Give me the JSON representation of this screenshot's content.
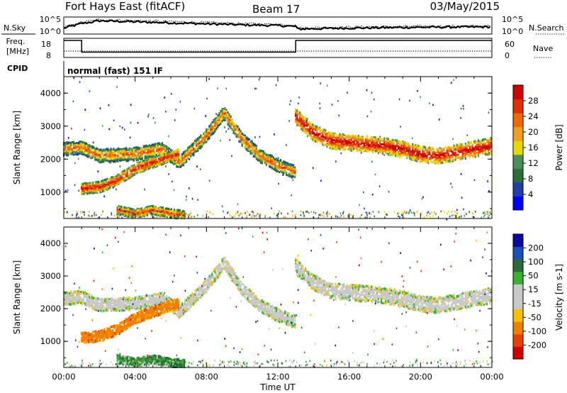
{
  "header": {
    "station": "Fort Hays East (fitACF)",
    "beam": "Beam 17",
    "date": "03/May/2015"
  },
  "summary_panels": {
    "nsky_label": "N.Sky",
    "nsearch_label": "N.Search",
    "nsky_ticks": [
      "10^5",
      "10^0"
    ],
    "nsearch_ticks": [
      "10^5",
      "10^0"
    ],
    "freq_label_top": "Freq.",
    "freq_label_unit": "[MHz]",
    "freq_ticks": [
      "18",
      "8"
    ],
    "nave_label": "Nave",
    "nave_ticks": [
      "60",
      "0"
    ],
    "cpid_label": "CPID",
    "cpid_value": "normal (fast) 151 IF"
  },
  "colors": {
    "power_scale": [
      "#0000ff",
      "#1f3fa8",
      "#2a6e3a",
      "#4a8f5a",
      "#e8d800",
      "#f0a020",
      "#f06a00",
      "#e03000",
      "#d00000"
    ],
    "velocity_scale": [
      "#0a0aa0",
      "#1a4fb8",
      "#2d6a3a",
      "#36b030",
      "#c8c8c8",
      "#c8c8c8",
      "#f5c000",
      "#f08000",
      "#e84000",
      "#d00000"
    ],
    "axis": "#000000"
  },
  "chart_data": [
    {
      "type": "line",
      "title": "N.Sky / N.Search",
      "x_unit": "Time UT (hours)",
      "y_scale": "log",
      "ylim_label": [
        "10^0",
        "10^5"
      ],
      "series": [
        {
          "name": "N.Sky",
          "style": "solid",
          "x": [
            0,
            1,
            2,
            4,
            6,
            8,
            10,
            12,
            13,
            13.1,
            16,
            20,
            24
          ],
          "y_rel": [
            0.35,
            0.62,
            0.78,
            0.72,
            0.66,
            0.6,
            0.54,
            0.5,
            0.45,
            0.3,
            0.35,
            0.4,
            0.42
          ]
        },
        {
          "name": "N.Search",
          "style": "dotted",
          "x": [
            0,
            1,
            2,
            4,
            6,
            8,
            10,
            12,
            13,
            13.1,
            16,
            20,
            24
          ],
          "y_rel": [
            0.4,
            0.7,
            0.85,
            0.8,
            0.74,
            0.68,
            0.62,
            0.58,
            0.52,
            0.36,
            0.42,
            0.46,
            0.48
          ]
        }
      ]
    },
    {
      "type": "line",
      "title": "Freq / Nave",
      "series": [
        {
          "name": "Freq [MHz]",
          "x": [
            0,
            1,
            1,
            13,
            13,
            24
          ],
          "y": [
            18,
            18,
            10.5,
            10.5,
            18,
            18
          ]
        },
        {
          "name": "Nave",
          "style": "dotted",
          "x": [
            0,
            24
          ],
          "y": [
            8,
            8
          ]
        }
      ]
    },
    {
      "type": "heatmap",
      "title": "Power",
      "xlabel": "Time UT",
      "ylabel": "Slant Range [km]",
      "x_ticks": [
        "00:00",
        "04:00",
        "08:00",
        "12:00",
        "16:00",
        "20:00",
        "00:00"
      ],
      "y_ticks": [
        "1000",
        "2000",
        "3000",
        "4000"
      ],
      "xlim_hours": [
        0,
        24
      ],
      "ylim_km": [
        200,
        4500
      ],
      "colorbar": {
        "label": "Power [dB]",
        "ticks": [
          "4",
          "8",
          "12",
          "16",
          "20",
          "24",
          "28"
        ],
        "range": [
          0,
          30
        ]
      },
      "bands": [
        {
          "name": "upper echo band",
          "t": [
            0,
            1,
            2,
            4,
            5.5,
            6.5,
            8,
            9,
            10,
            11,
            12,
            13
          ],
          "r": [
            2300,
            2350,
            2100,
            2150,
            2300,
            1900,
            2700,
            3400,
            2600,
            2100,
            1800,
            1600
          ],
          "width_km": 180,
          "power_db": 18
        },
        {
          "name": "lower band",
          "t": [
            1,
            2,
            3,
            4,
            5,
            6,
            6.5
          ],
          "r": [
            1100,
            1150,
            1350,
            1700,
            1900,
            2100,
            2150
          ],
          "width_km": 150,
          "power_db": 22
        },
        {
          "name": "low range echoes",
          "t": [
            3,
            4,
            5,
            6,
            6.8
          ],
          "r": [
            450,
            350,
            450,
            350,
            300
          ],
          "width_km": 120,
          "power_db": 20
        },
        {
          "name": "post-13 band",
          "t": [
            13,
            14,
            15,
            16,
            17,
            18,
            19,
            20,
            21,
            22,
            23,
            24
          ],
          "r": [
            3300,
            2800,
            2550,
            2500,
            2450,
            2400,
            2300,
            2150,
            2100,
            2200,
            2300,
            2400
          ],
          "width_km": 220,
          "power_db": 24
        }
      ]
    },
    {
      "type": "heatmap",
      "title": "Velocity",
      "xlabel": "Time UT",
      "ylabel": "Slant Range [km]",
      "x_ticks": [
        "00:00",
        "04:00",
        "08:00",
        "12:00",
        "16:00",
        "20:00",
        "00:00"
      ],
      "y_ticks": [
        "1000",
        "2000",
        "3000",
        "4000"
      ],
      "xlim_hours": [
        0,
        24
      ],
      "ylim_km": [
        200,
        4500
      ],
      "colorbar": {
        "label": "Velocity [m s-1]",
        "ticks": [
          "200",
          "100",
          "50",
          "15",
          "-15",
          "-50",
          "-100",
          "-200"
        ],
        "range": [
          -250,
          250
        ]
      },
      "bands": [
        {
          "name": "upper echo band",
          "t": [
            0,
            1,
            2,
            4,
            5.5,
            6.5,
            8,
            9,
            10,
            11,
            12,
            13
          ],
          "r": [
            2300,
            2350,
            2100,
            2150,
            2300,
            1900,
            2700,
            3400,
            2600,
            2100,
            1800,
            1600
          ],
          "width_km": 180,
          "vel": 0
        },
        {
          "name": "lower band",
          "t": [
            1,
            2,
            3,
            4,
            5,
            6,
            6.5
          ],
          "r": [
            1100,
            1150,
            1350,
            1700,
            1900,
            2100,
            2150
          ],
          "width_km": 150,
          "vel": -60
        },
        {
          "name": "low range echoes",
          "t": [
            3,
            4,
            5,
            6,
            6.8
          ],
          "r": [
            450,
            350,
            450,
            350,
            300
          ],
          "width_km": 120,
          "vel": 40
        },
        {
          "name": "post-13 band",
          "t": [
            13,
            14,
            15,
            16,
            17,
            18,
            19,
            20,
            21,
            22,
            23,
            24
          ],
          "r": [
            3300,
            2800,
            2550,
            2500,
            2450,
            2400,
            2300,
            2150,
            2100,
            2200,
            2300,
            2400
          ],
          "width_km": 220,
          "vel": 0
        }
      ]
    }
  ],
  "axes": {
    "x_title": "Time UT"
  }
}
